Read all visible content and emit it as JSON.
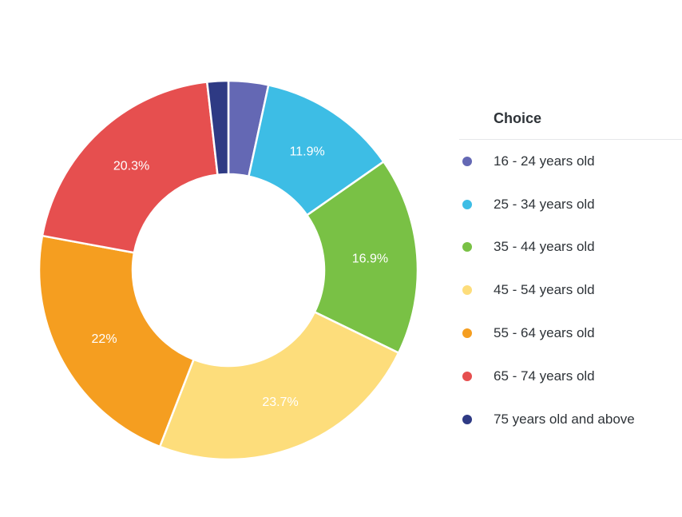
{
  "chart_data": {
    "type": "pie",
    "variant": "donut",
    "legend_title": "Choice",
    "legend_position": "right",
    "slices": [
      {
        "label": "16 - 24 years old",
        "value": 3.4,
        "display": "",
        "color": "#6468b4"
      },
      {
        "label": "25 - 34 years old",
        "value": 11.9,
        "display": "11.9%",
        "color": "#3dbde5"
      },
      {
        "label": "35 - 44 years old",
        "value": 16.9,
        "display": "16.9%",
        "color": "#79c145"
      },
      {
        "label": "45 - 54 years old",
        "value": 23.7,
        "display": "23.7%",
        "color": "#fddd7b"
      },
      {
        "label": "55 - 64 years old",
        "value": 22,
        "display": "22%",
        "color": "#f59e20"
      },
      {
        "label": "65 - 74 years old",
        "value": 20.3,
        "display": "20.3%",
        "color": "#e64f4f"
      },
      {
        "label": "75 years old and above",
        "value": 1.8,
        "display": "",
        "color": "#2e3a84"
      }
    ]
  }
}
